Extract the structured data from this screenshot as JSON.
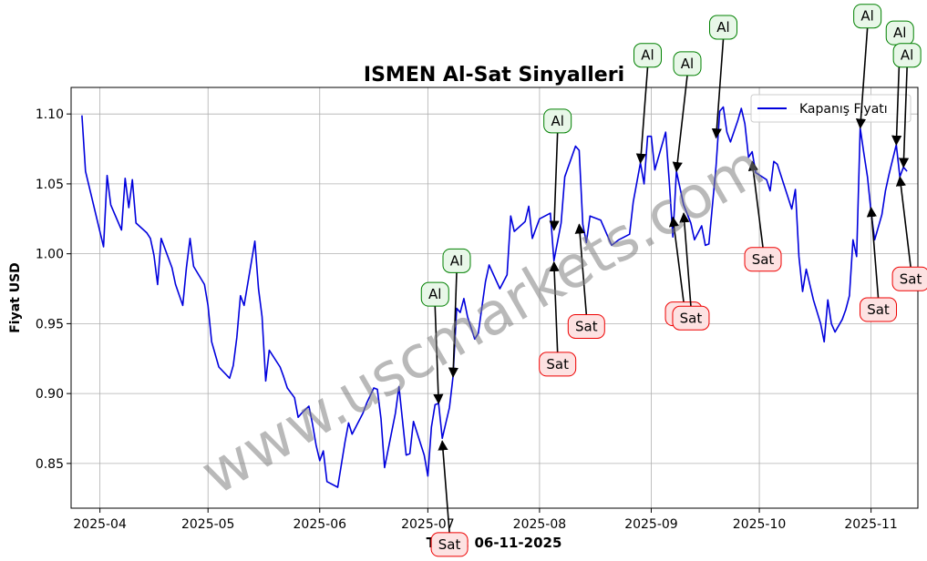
{
  "chart_data": {
    "type": "line",
    "title": "ISMEN Al-Sat Sinyalleri",
    "xlabel": "Tarih: 06-11-2025",
    "ylabel": "Fiyat USD",
    "ylim": [
      0.818,
      1.119
    ],
    "xlim": [
      "2025-03-24",
      "2025-11-14"
    ],
    "yticks": [
      0.85,
      0.9,
      0.95,
      1.0,
      1.05,
      1.1
    ],
    "ytick_labels": [
      "0.85",
      "0.90",
      "0.95",
      "1.00",
      "1.05",
      "1.10"
    ],
    "xticks": [
      "2025-04-01",
      "2025-05-01",
      "2025-06-01",
      "2025-07-01",
      "2025-08-01",
      "2025-09-01",
      "2025-10-01",
      "2025-11-01"
    ],
    "xtick_labels": [
      "2025-04",
      "2025-05",
      "2025-06",
      "2025-07",
      "2025-08",
      "2025-09",
      "2025-10",
      "2025-11"
    ],
    "grid": true,
    "legend_position": "top-right",
    "series": [
      {
        "name": "Kapanış Fiyatı",
        "color": "#0000dd",
        "points": [
          [
            "2025-03-27",
            1.099
          ],
          [
            "2025-03-28",
            1.059
          ],
          [
            "2025-04-02",
            1.005
          ],
          [
            "2025-04-03",
            1.056
          ],
          [
            "2025-04-04",
            1.035
          ],
          [
            "2025-04-07",
            1.017
          ],
          [
            "2025-04-08",
            1.054
          ],
          [
            "2025-04-09",
            1.033
          ],
          [
            "2025-04-10",
            1.053
          ],
          [
            "2025-04-11",
            1.022
          ],
          [
            "2025-04-14",
            1.015
          ],
          [
            "2025-04-15",
            1.011
          ],
          [
            "2025-04-16",
            0.999
          ],
          [
            "2025-04-17",
            0.978
          ],
          [
            "2025-04-18",
            1.011
          ],
          [
            "2025-04-21",
            0.99
          ],
          [
            "2025-04-22",
            0.978
          ],
          [
            "2025-04-24",
            0.963
          ],
          [
            "2025-04-25",
            0.99
          ],
          [
            "2025-04-26",
            1.011
          ],
          [
            "2025-04-27",
            0.991
          ],
          [
            "2025-04-30",
            0.978
          ],
          [
            "2025-05-01",
            0.963
          ],
          [
            "2025-05-02",
            0.937
          ],
          [
            "2025-05-04",
            0.919
          ],
          [
            "2025-05-07",
            0.911
          ],
          [
            "2025-05-08",
            0.92
          ],
          [
            "2025-05-09",
            0.94
          ],
          [
            "2025-05-10",
            0.97
          ],
          [
            "2025-05-11",
            0.963
          ],
          [
            "2025-05-14",
            1.009
          ],
          [
            "2025-05-15",
            0.975
          ],
          [
            "2025-05-16",
            0.955
          ],
          [
            "2025-05-17",
            0.909
          ],
          [
            "2025-05-18",
            0.931
          ],
          [
            "2025-05-21",
            0.919
          ],
          [
            "2025-05-22",
            0.912
          ],
          [
            "2025-05-23",
            0.904
          ],
          [
            "2025-05-25",
            0.897
          ],
          [
            "2025-05-26",
            0.883
          ],
          [
            "2025-05-27",
            0.886
          ],
          [
            "2025-05-29",
            0.891
          ],
          [
            "2025-05-30",
            0.878
          ],
          [
            "2025-05-31",
            0.863
          ],
          [
            "2025-06-01",
            0.852
          ],
          [
            "2025-06-02",
            0.859
          ],
          [
            "2025-06-03",
            0.837
          ],
          [
            "2025-06-06",
            0.833
          ],
          [
            "2025-06-08",
            0.865
          ],
          [
            "2025-06-09",
            0.879
          ],
          [
            "2025-06-10",
            0.871
          ],
          [
            "2025-06-13",
            0.886
          ],
          [
            "2025-06-14",
            0.893
          ],
          [
            "2025-06-16",
            0.904
          ],
          [
            "2025-06-17",
            0.903
          ],
          [
            "2025-06-18",
            0.882
          ],
          [
            "2025-06-19",
            0.847
          ],
          [
            "2025-06-22",
            0.886
          ],
          [
            "2025-06-23",
            0.905
          ],
          [
            "2025-06-24",
            0.88
          ],
          [
            "2025-06-25",
            0.856
          ],
          [
            "2025-06-26",
            0.857
          ],
          [
            "2025-06-27",
            0.88
          ],
          [
            "2025-06-30",
            0.856
          ],
          [
            "2025-07-01",
            0.841
          ],
          [
            "2025-07-02",
            0.876
          ],
          [
            "2025-07-03",
            0.892
          ],
          [
            "2025-07-04",
            0.893
          ],
          [
            "2025-07-05",
            0.868
          ],
          [
            "2025-07-07",
            0.89
          ],
          [
            "2025-07-08",
            0.912
          ],
          [
            "2025-07-09",
            0.961
          ],
          [
            "2025-07-10",
            0.958
          ],
          [
            "2025-07-11",
            0.968
          ],
          [
            "2025-07-12",
            0.955
          ],
          [
            "2025-07-14",
            0.939
          ],
          [
            "2025-07-15",
            0.943
          ],
          [
            "2025-07-17",
            0.98
          ],
          [
            "2025-07-18",
            0.992
          ],
          [
            "2025-07-21",
            0.975
          ],
          [
            "2025-07-23",
            0.985
          ],
          [
            "2025-07-24",
            1.027
          ],
          [
            "2025-07-25",
            1.016
          ],
          [
            "2025-07-28",
            1.023
          ],
          [
            "2025-07-29",
            1.034
          ],
          [
            "2025-07-30",
            1.011
          ],
          [
            "2025-08-01",
            1.025
          ],
          [
            "2025-08-04",
            1.029
          ],
          [
            "2025-08-05",
            0.995
          ],
          [
            "2025-08-07",
            1.022
          ],
          [
            "2025-08-08",
            1.055
          ],
          [
            "2025-08-11",
            1.077
          ],
          [
            "2025-08-12",
            1.074
          ],
          [
            "2025-08-13",
            1.021
          ],
          [
            "2025-08-14",
            1.008
          ],
          [
            "2025-08-15",
            1.027
          ],
          [
            "2025-08-18",
            1.024
          ],
          [
            "2025-08-21",
            1.006
          ],
          [
            "2025-08-23",
            1.01
          ],
          [
            "2025-08-26",
            1.014
          ],
          [
            "2025-08-27",
            1.037
          ],
          [
            "2025-08-29",
            1.065
          ],
          [
            "2025-08-30",
            1.05
          ],
          [
            "2025-08-31",
            1.084
          ],
          [
            "2025-09-01",
            1.084
          ],
          [
            "2025-09-02",
            1.06
          ],
          [
            "2025-09-05",
            1.087
          ],
          [
            "2025-09-06",
            1.052
          ],
          [
            "2025-09-07",
            1.012
          ],
          [
            "2025-09-08",
            1.059
          ],
          [
            "2025-09-10",
            1.035
          ],
          [
            "2025-09-12",
            1.022
          ],
          [
            "2025-09-13",
            1.01
          ],
          [
            "2025-09-15",
            1.02
          ],
          [
            "2025-09-16",
            1.006
          ],
          [
            "2025-09-17",
            1.007
          ],
          [
            "2025-09-19",
            1.063
          ],
          [
            "2025-09-20",
            1.102
          ],
          [
            "2025-09-21",
            1.105
          ],
          [
            "2025-09-22",
            1.087
          ],
          [
            "2025-09-23",
            1.08
          ],
          [
            "2025-09-25",
            1.095
          ],
          [
            "2025-09-26",
            1.104
          ],
          [
            "2025-09-27",
            1.093
          ],
          [
            "2025-09-28",
            1.069
          ],
          [
            "2025-09-29",
            1.073
          ],
          [
            "2025-09-30",
            1.058
          ],
          [
            "2025-10-03",
            1.053
          ],
          [
            "2025-10-04",
            1.045
          ],
          [
            "2025-10-05",
            1.066
          ],
          [
            "2025-10-06",
            1.064
          ],
          [
            "2025-10-09",
            1.04
          ],
          [
            "2025-10-10",
            1.032
          ],
          [
            "2025-10-11",
            1.046
          ],
          [
            "2025-10-12",
            0.998
          ],
          [
            "2025-10-13",
            0.973
          ],
          [
            "2025-10-14",
            0.989
          ],
          [
            "2025-10-16",
            0.967
          ],
          [
            "2025-10-18",
            0.95
          ],
          [
            "2025-10-19",
            0.937
          ],
          [
            "2025-10-20",
            0.967
          ],
          [
            "2025-10-21",
            0.95
          ],
          [
            "2025-10-22",
            0.944
          ],
          [
            "2025-10-24",
            0.953
          ],
          [
            "2025-10-25",
            0.96
          ],
          [
            "2025-10-26",
            0.97
          ],
          [
            "2025-10-27",
            1.01
          ],
          [
            "2025-10-28",
            0.998
          ],
          [
            "2025-10-29",
            1.09
          ],
          [
            "2025-10-30",
            1.072
          ],
          [
            "2025-10-31",
            1.055
          ],
          [
            "2025-11-01",
            1.03
          ],
          [
            "2025-11-02",
            1.01
          ],
          [
            "2025-11-04",
            1.028
          ],
          [
            "2025-11-05",
            1.045
          ],
          [
            "2025-11-06",
            1.057
          ],
          [
            "2025-11-08",
            1.078
          ],
          [
            "2025-11-09",
            1.055
          ],
          [
            "2025-11-10",
            1.062
          ],
          [
            "2025-11-11",
            1.059
          ]
        ]
      }
    ],
    "annotations": [
      {
        "label": "Al",
        "kind": "buy",
        "x": "2025-07-04",
        "y": 0.893,
        "label_x": "2025-07-03",
        "label_y": 0.971
      },
      {
        "label": "Al",
        "kind": "buy",
        "x": "2025-07-08",
        "y": 0.912,
        "label_x": "2025-07-09",
        "label_y": 0.995
      },
      {
        "label": "Sat",
        "kind": "sell",
        "x": "2025-07-05",
        "y": 0.866,
        "label_x": "2025-07-07",
        "label_y": 0.792
      },
      {
        "label": "Sat",
        "kind": "sell",
        "x": "2025-08-05",
        "y": 0.994,
        "label_x": "2025-08-06",
        "label_y": 0.921
      },
      {
        "label": "Al",
        "kind": "buy",
        "x": "2025-08-05",
        "y": 1.017,
        "label_x": "2025-08-06",
        "label_y": 1.095
      },
      {
        "label": "Sat",
        "kind": "sell",
        "x": "2025-08-12",
        "y": 1.021,
        "label_x": "2025-08-14",
        "label_y": 0.948
      },
      {
        "label": "Al",
        "kind": "buy",
        "x": "2025-08-29",
        "y": 1.065,
        "label_x": "2025-08-31",
        "label_y": 1.142
      },
      {
        "label": "Sat",
        "kind": "sell",
        "x": "2025-09-07",
        "y": 1.026,
        "label_x": "2025-09-10",
        "label_y": 0.957
      },
      {
        "label": "Al",
        "kind": "buy",
        "x": "2025-09-08",
        "y": 1.059,
        "label_x": "2025-09-11",
        "label_y": 1.136
      },
      {
        "label": "Sat",
        "kind": "sell",
        "x": "2025-09-10",
        "y": 1.029,
        "label_x": "2025-09-12",
        "label_y": 0.954
      },
      {
        "label": "Al",
        "kind": "buy",
        "x": "2025-09-19",
        "y": 1.083,
        "label_x": "2025-09-21",
        "label_y": 1.162
      },
      {
        "label": "Sat",
        "kind": "sell",
        "x": "2025-09-29",
        "y": 1.066,
        "label_x": "2025-10-02",
        "label_y": 0.996
      },
      {
        "label": "Al",
        "kind": "buy",
        "x": "2025-10-29",
        "y": 1.09,
        "label_x": "2025-10-31",
        "label_y": 1.17
      },
      {
        "label": "Sat",
        "kind": "sell",
        "x": "2025-11-01",
        "y": 1.033,
        "label_x": "2025-11-03",
        "label_y": 0.96
      },
      {
        "label": "Al",
        "kind": "buy",
        "x": "2025-11-08",
        "y": 1.078,
        "label_x": "2025-11-09",
        "label_y": 1.158
      },
      {
        "label": "Al",
        "kind": "buy",
        "x": "2025-11-10",
        "y": 1.062,
        "label_x": "2025-11-11",
        "label_y": 1.142
      },
      {
        "label": "Sat",
        "kind": "sell",
        "x": "2025-11-09",
        "y": 1.055,
        "label_x": "2025-11-12",
        "label_y": 0.982
      }
    ],
    "signal_colors": {
      "buy_fill": "#e8f7e8",
      "buy_edge": "#008000",
      "sell_fill": "#fde2e2",
      "sell_edge": "#ee0000"
    }
  },
  "watermark": "www.uscmarkets.com"
}
